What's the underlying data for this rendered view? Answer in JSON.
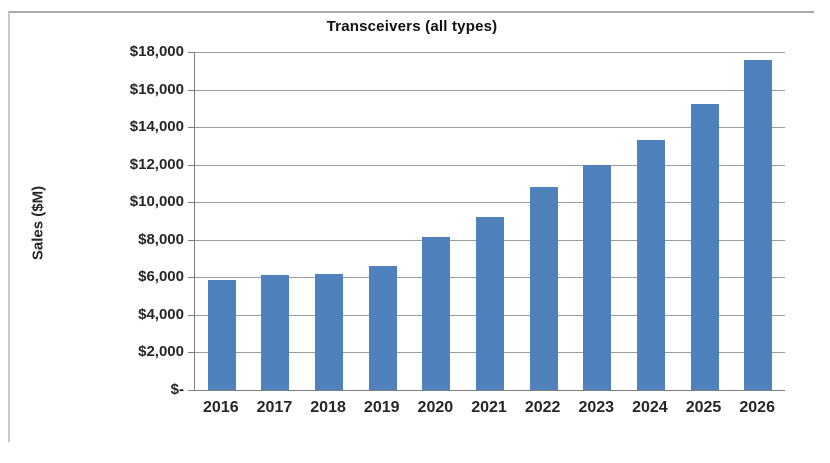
{
  "chart_data": {
    "type": "bar",
    "title": "Transceivers (all types)",
    "ylabel": "Sales ($M)",
    "xlabel": "",
    "categories": [
      "2016",
      "2017",
      "2018",
      "2019",
      "2020",
      "2021",
      "2022",
      "2023",
      "2024",
      "2025",
      "2026"
    ],
    "values": [
      5850,
      6100,
      6200,
      6600,
      8150,
      9200,
      10800,
      12000,
      13300,
      15250,
      17600
    ],
    "ylim": [
      0,
      18000
    ],
    "ytick_step": 2000,
    "ytick_labels": [
      "$-",
      "$2,000",
      "$4,000",
      "$6,000",
      "$8,000",
      "$10,000",
      "$12,000",
      "$14,000",
      "$16,000",
      "$18,000"
    ],
    "grid": true,
    "legend": "none",
    "bar_color": "#4f81bd"
  },
  "colors": {
    "bar": "#4f81bd",
    "gridline": "#9b9b9b",
    "axis": "#7f7f7f",
    "text": "#262626",
    "frame_border": "#a8a8a8"
  }
}
